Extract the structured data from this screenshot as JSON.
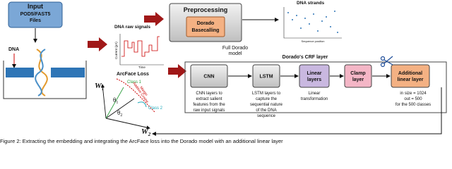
{
  "input": {
    "title": "Input",
    "format": "POD5/FAST5",
    "files": "Files"
  },
  "dna_label": "DNA",
  "raw_signals": {
    "title": "DNA raw signals",
    "y_label": "Current (pA)",
    "x_label": "Time"
  },
  "preprocessing": {
    "title": "Preprocessing",
    "inner": [
      "Dorado",
      "Basecalling"
    ],
    "note": [
      "Full Dorado",
      "model"
    ]
  },
  "strands": {
    "title": "DNA strands",
    "x_label": "Sequence position"
  },
  "arcface": {
    "title": "ArcFace Loss",
    "w1": "W",
    "w1_sub": "1",
    "w2": "W",
    "w2_sub": "2",
    "class1": "Class 1",
    "class2": "Class 2",
    "theta1": "θ",
    "theta1_sub": "1",
    "theta2": "θ",
    "theta2_sub": "2",
    "margin": [
      "Additive Cosine",
      "Margin"
    ]
  },
  "crf": {
    "title": "Dorado's CRF layer",
    "blocks": [
      {
        "label": [
          "CNN"
        ],
        "desc": [
          "CNN layers to",
          "extract salient",
          "features from the",
          "raw input signals"
        ]
      },
      {
        "label": [
          "LSTM"
        ],
        "desc": [
          "LSTM layers to",
          "capture the",
          "sequential nature",
          "of the DNA",
          "sequence"
        ]
      },
      {
        "label": [
          "Linear",
          "layers"
        ],
        "desc": [
          "Linear",
          "transformation"
        ]
      },
      {
        "label": [
          "Clamp",
          "layer"
        ],
        "desc": []
      },
      {
        "label": [
          "Additional",
          "linear layer"
        ],
        "desc": [
          "in size = 1024",
          "out = 500",
          "for the 500 classes"
        ]
      }
    ]
  },
  "caption": "Figure 2: Extracting the embedding and integrating the ArcFace loss into the Dorado model with an additional linear layer"
}
